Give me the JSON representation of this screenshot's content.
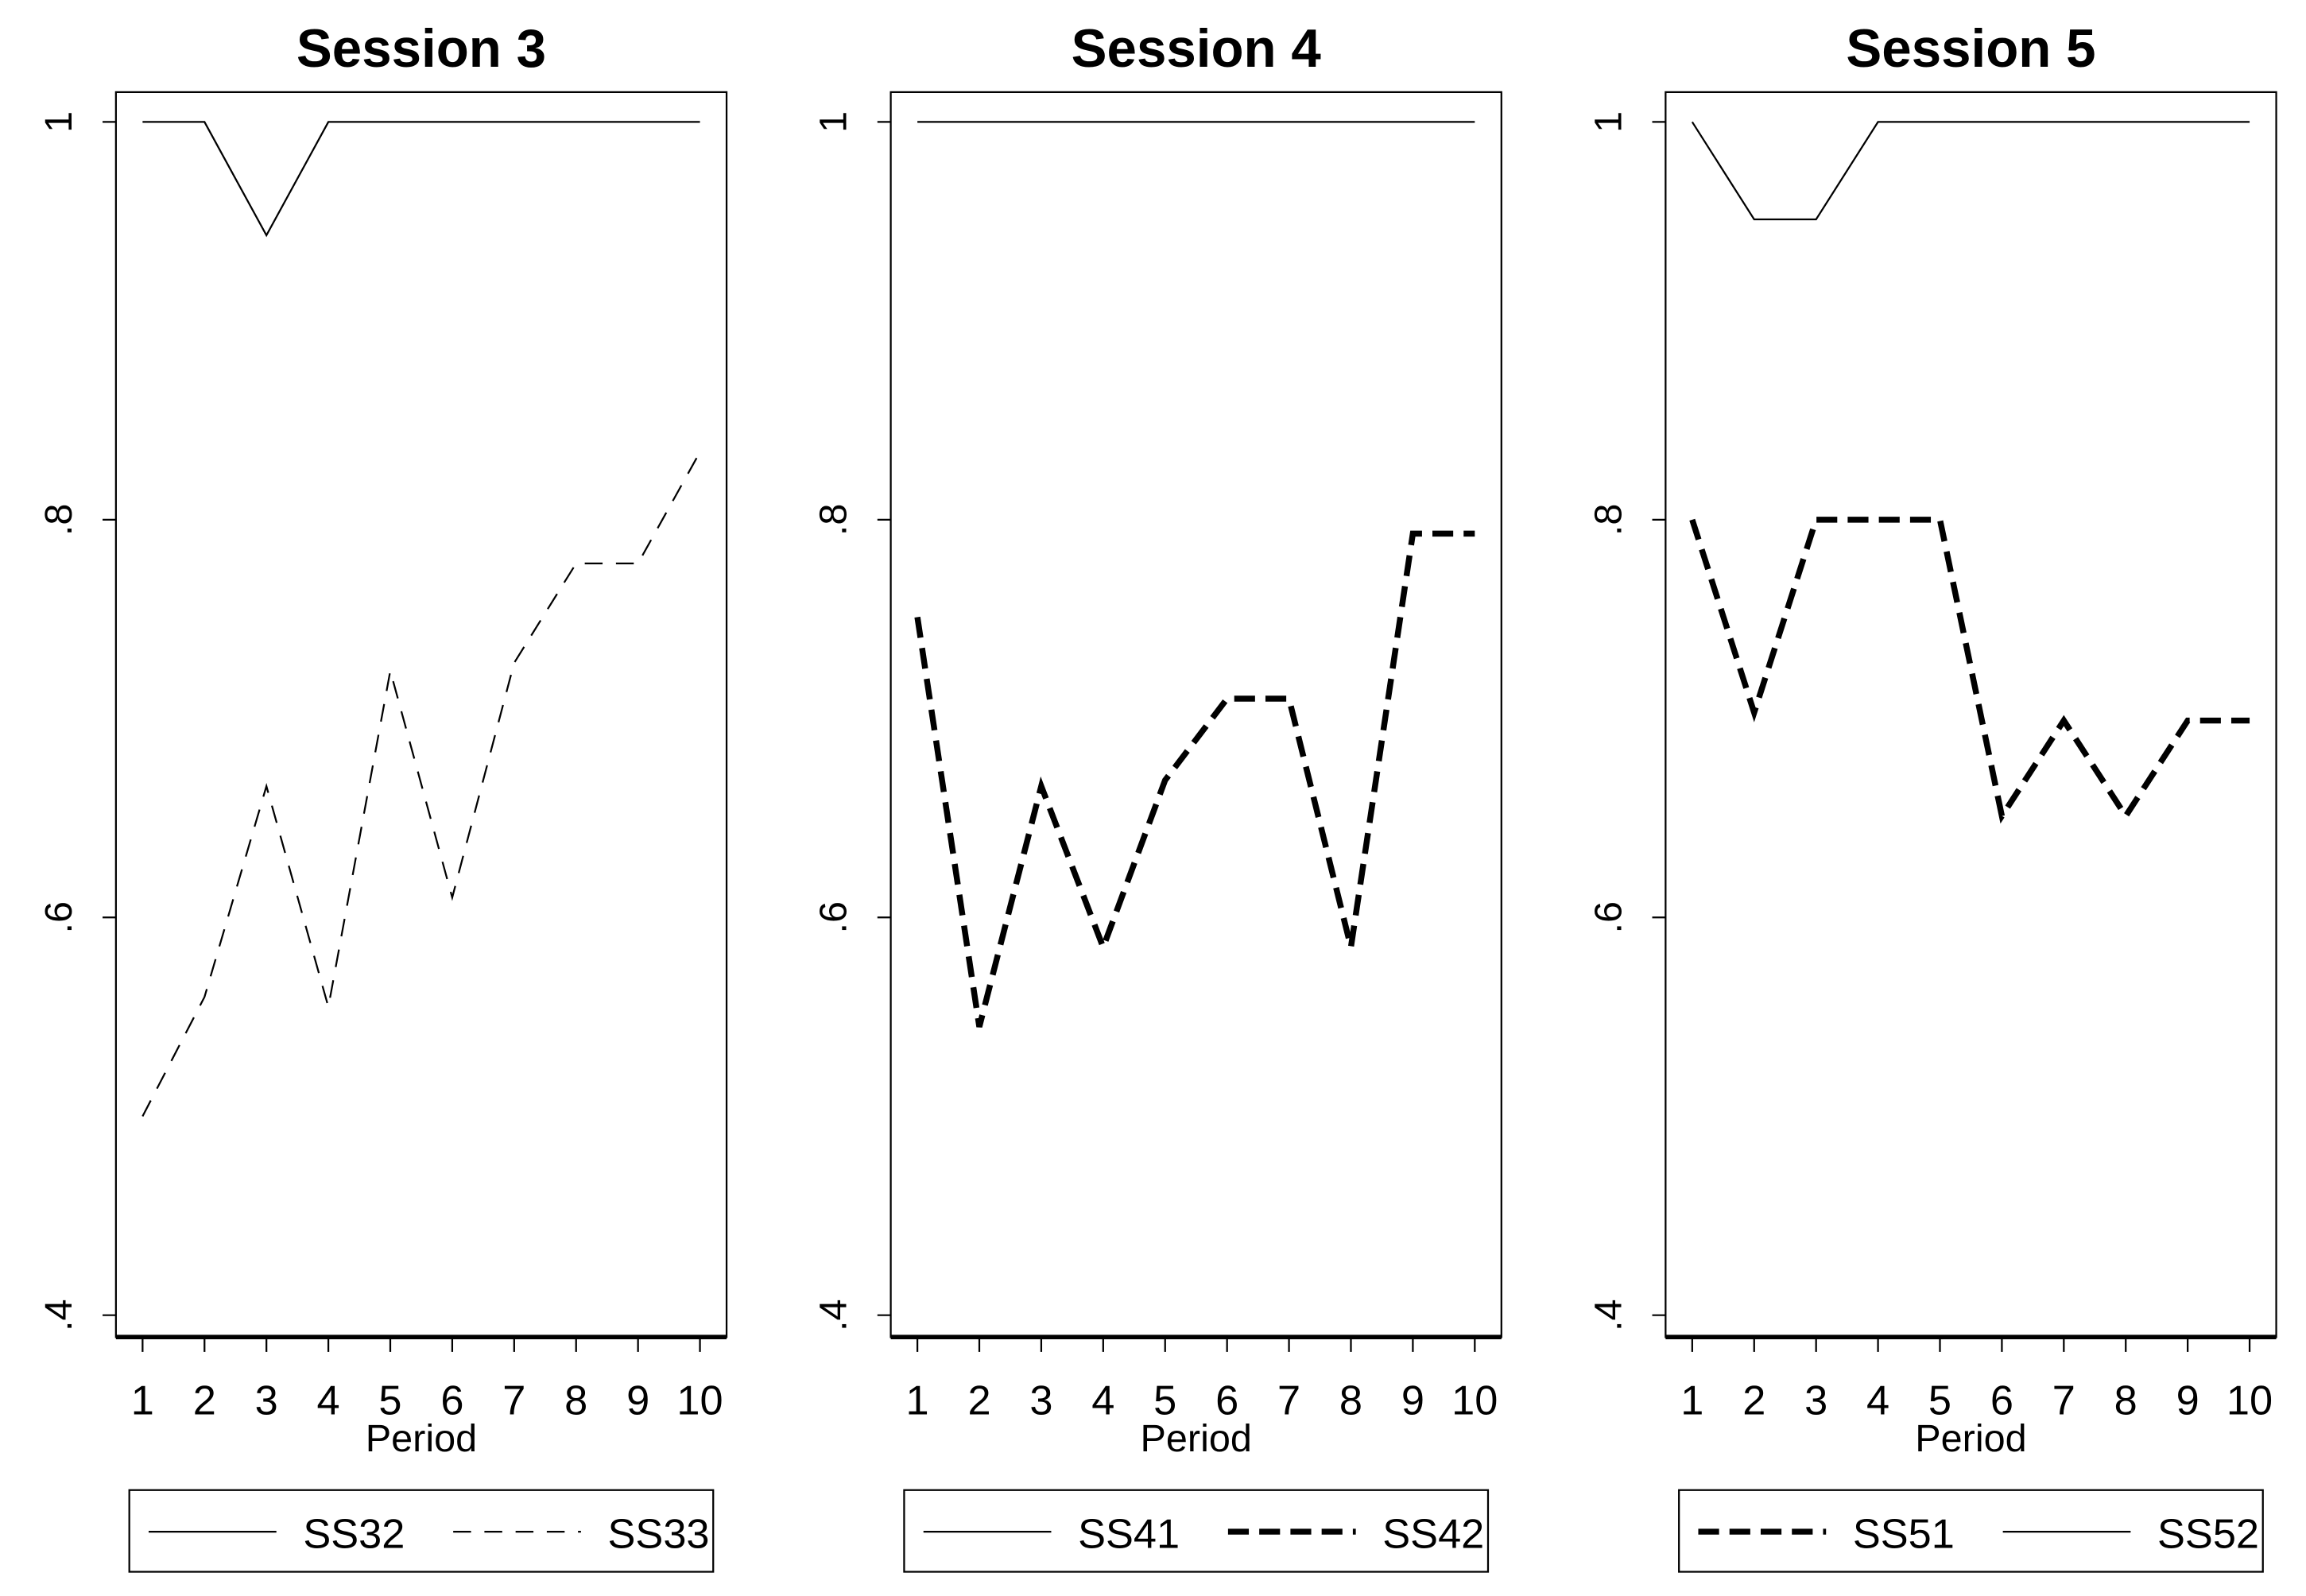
{
  "chart_data": [
    {
      "type": "line",
      "title": "Session 3",
      "xlabel": "Period",
      "x": [
        1,
        2,
        3,
        4,
        5,
        6,
        7,
        8,
        9,
        10
      ],
      "xlim": [
        0.57,
        10.43
      ],
      "xticks": [
        1,
        2,
        3,
        4,
        5,
        6,
        7,
        8,
        9,
        10
      ],
      "ylim": [
        0.389,
        1.015
      ],
      "yticks": [
        {
          "value": 0.4,
          "label": ".4"
        },
        {
          "value": 0.6,
          "label": ".6"
        },
        {
          "value": 0.8,
          "label": ".8"
        },
        {
          "value": 1,
          "label": "1"
        }
      ],
      "series": [
        {
          "name": "SS32",
          "color": "#000000",
          "dash": false,
          "width": 1.2,
          "values": [
            1,
            1,
            0.943,
            1,
            1,
            1,
            1,
            1,
            1,
            1
          ]
        },
        {
          "name": "SS33",
          "color": "#000000",
          "dash": true,
          "width": 1.2,
          "values": [
            0.5,
            0.56,
            0.666,
            0.555,
            0.724,
            0.61,
            0.728,
            0.778,
            0.778,
            0.834
          ]
        }
      ]
    },
    {
      "type": "line",
      "title": "Session 4",
      "xlabel": "Period",
      "x": [
        1,
        2,
        3,
        4,
        5,
        6,
        7,
        8,
        9,
        10
      ],
      "xlim": [
        0.57,
        10.43
      ],
      "xticks": [
        1,
        2,
        3,
        4,
        5,
        6,
        7,
        8,
        9,
        10
      ],
      "ylim": [
        0.389,
        1.015
      ],
      "yticks": [
        {
          "value": 0.4,
          "label": ".4"
        },
        {
          "value": 0.6,
          "label": ".6"
        },
        {
          "value": 0.8,
          "label": ".8"
        },
        {
          "value": 1,
          "label": "1"
        }
      ],
      "series": [
        {
          "name": "SS41",
          "color": "#000000",
          "dash": false,
          "width": 1.2,
          "values": [
            1,
            1,
            1,
            1,
            1,
            1,
            1,
            1,
            1,
            1
          ]
        },
        {
          "name": "SS42",
          "color": "#000000",
          "dash": true,
          "width": 4,
          "values": [
            0.751,
            0.545,
            0.666,
            0.585,
            0.669,
            0.71,
            0.71,
            0.585,
            0.793,
            0.793
          ]
        }
      ]
    },
    {
      "type": "line",
      "title": "Session 5",
      "xlabel": "Period",
      "x": [
        1,
        2,
        3,
        4,
        5,
        6,
        7,
        8,
        9,
        10
      ],
      "xlim": [
        0.57,
        10.43
      ],
      "xticks": [
        1,
        2,
        3,
        4,
        5,
        6,
        7,
        8,
        9,
        10
      ],
      "ylim": [
        0.389,
        1.015
      ],
      "yticks": [
        {
          "value": 0.4,
          "label": ".4"
        },
        {
          "value": 0.6,
          "label": ".6"
        },
        {
          "value": 0.8,
          "label": ".8"
        },
        {
          "value": 1,
          "label": "1"
        }
      ],
      "series": [
        {
          "name": "SS51",
          "color": "#000000",
          "dash": true,
          "width": 4,
          "values": [
            0.8,
            0.703,
            0.8,
            0.8,
            0.8,
            0.651,
            0.699,
            0.651,
            0.699,
            0.699
          ]
        },
        {
          "name": "SS52",
          "color": "#000000",
          "dash": false,
          "width": 1.2,
          "values": [
            1,
            0.951,
            0.951,
            1,
            1,
            1,
            1,
            1,
            1,
            1
          ]
        }
      ]
    }
  ]
}
